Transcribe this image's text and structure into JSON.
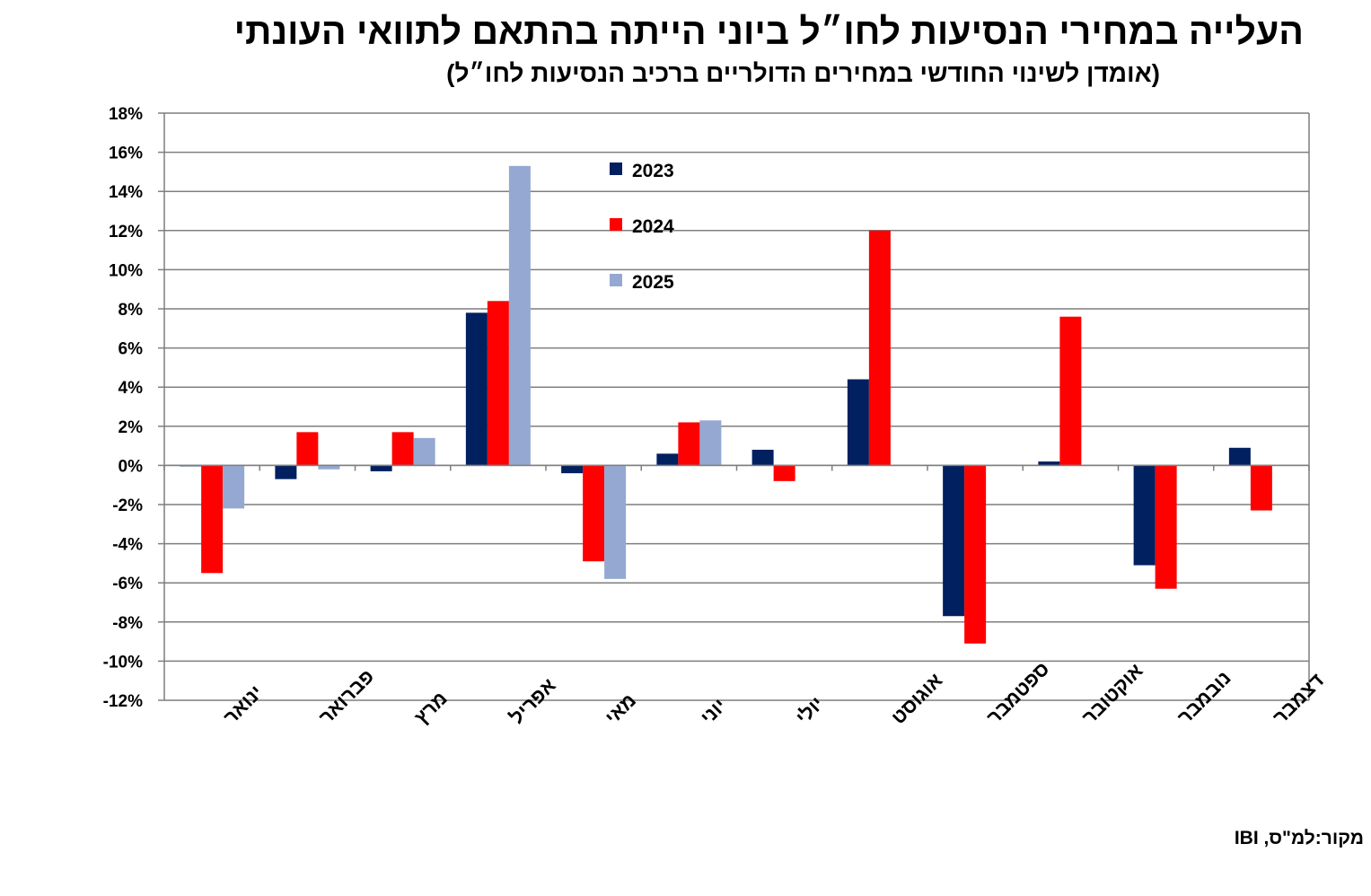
{
  "chart_data": {
    "type": "bar",
    "title": "העלייה במחירי הנסיעות לחו״ל ביוני הייתה בהתאם לתוואי העונתי",
    "subtitle": "(אומדן לשינוי החודשי במחירים הדולריים ברכיב הנסיעות לחו״ל)",
    "source": "מקור:למ\"ס, IBI",
    "categories": [
      "ינואר",
      "פברואר",
      "מרץ",
      "אפריל",
      "מאי",
      "יוני",
      "יולי",
      "אוגוסט",
      "ספטמבר",
      "אוקטובר",
      "נובמבר",
      "דצמבר"
    ],
    "series": [
      {
        "name": "2023",
        "color": "#002060",
        "values": [
          0,
          -0.7,
          -0.3,
          7.8,
          -0.4,
          0.6,
          0.8,
          4.4,
          -7.7,
          0.2,
          -5.1,
          0.9
        ]
      },
      {
        "name": "2024",
        "color": "#ff0000",
        "values": [
          -5.5,
          1.7,
          1.7,
          8.4,
          -4.9,
          2.2,
          -0.8,
          12.0,
          -9.1,
          7.6,
          -6.3,
          -2.3
        ]
      },
      {
        "name": "2025",
        "color": "#94a8d2",
        "values": [
          -2.2,
          -0.2,
          1.4,
          15.3,
          -5.8,
          2.3,
          null,
          null,
          null,
          null,
          null,
          null
        ]
      }
    ],
    "ylim": [
      -12,
      18
    ],
    "yticks": [
      "18%",
      "16%",
      "14%",
      "12%",
      "10%",
      "8%",
      "6%",
      "4%",
      "2%",
      "0%",
      "-2%",
      "-4%",
      "-6%",
      "-8%",
      "-10%",
      "-12%"
    ],
    "grid": true,
    "legend_position": "inside-top-center"
  }
}
